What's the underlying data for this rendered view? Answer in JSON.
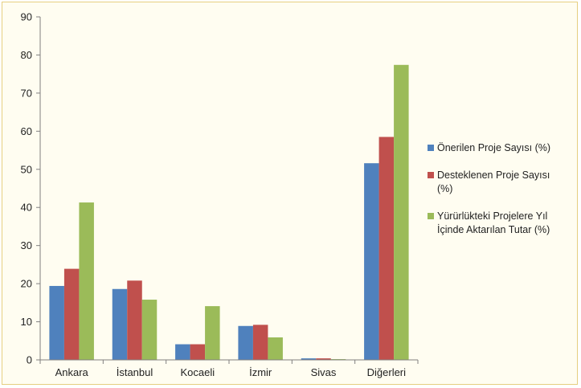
{
  "chart_data": {
    "type": "bar",
    "categories": [
      "Ankara",
      "İstanbul",
      "Kocaeli",
      "İzmir",
      "Sivas",
      "Diğerleri"
    ],
    "series": [
      {
        "name": "Önerilen Proje Sayısı (%)",
        "legend_lines": [
          "Önerilen Proje Sayısı (%)"
        ],
        "color": "#4f81bd",
        "values": [
          19.4,
          18.6,
          4.1,
          8.9,
          0.4,
          51.6
        ]
      },
      {
        "name": "Desteklenen Proje Sayısı (%)",
        "legend_lines": [
          "Desteklenen Proje Sayısı",
          "(%)"
        ],
        "color": "#c0504d",
        "values": [
          23.9,
          20.8,
          4.1,
          9.2,
          0.4,
          58.5
        ]
      },
      {
        "name": "Yürürlükteki Projelere Yıl İçinde Aktarılan Tutar (%)",
        "legend_lines": [
          "Yürürlükteki Projelere Yıl",
          "İçinde Aktarılan Tutar (%)"
        ],
        "color": "#9bbb59",
        "values": [
          41.3,
          15.8,
          14.1,
          5.9,
          0.2,
          77.4
        ]
      }
    ],
    "y_ticks": [
      "0",
      "10",
      "20",
      "30",
      "40",
      "50",
      "60",
      "70",
      "80",
      "90"
    ],
    "ylim": [
      0,
      90
    ],
    "grid": false,
    "legend_position": "right",
    "title": "",
    "xlabel": "",
    "ylabel": ""
  },
  "colors": {
    "background": "#fffdf1",
    "border": "#e6cf80",
    "axis": "#808080"
  }
}
